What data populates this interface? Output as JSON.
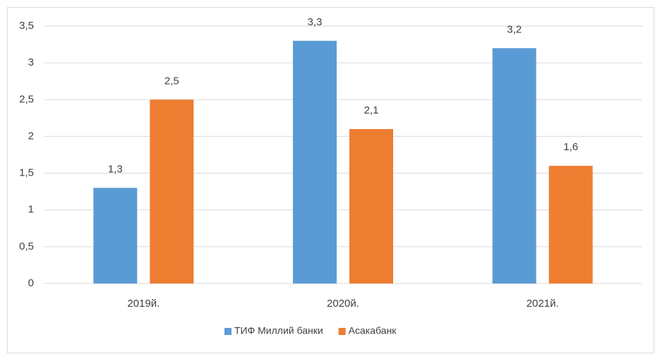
{
  "chart_data": {
    "type": "bar",
    "categories": [
      "2019й.",
      "2020й.",
      "2021й."
    ],
    "series": [
      {
        "name": "ТИФ Миллий банки",
        "color": "#5b9bd5",
        "values": [
          1.3,
          3.3,
          3.2
        ],
        "value_labels": [
          "1,3",
          "3,3",
          "3,2"
        ]
      },
      {
        "name": "Асакабанк",
        "color": "#ed7d31",
        "values": [
          2.5,
          2.1,
          1.6
        ],
        "value_labels": [
          "2,5",
          "2,1",
          "1,6"
        ]
      }
    ],
    "ylim": [
      0,
      3.5
    ],
    "yticks": [
      0,
      {
        "value": 0.5,
        "label": "0,5"
      },
      1,
      {
        "value": 1.5,
        "label": "1,5"
      },
      2,
      {
        "value": 2.5,
        "label": "2,5"
      },
      3,
      {
        "value": 3.5,
        "label": "3,5"
      }
    ],
    "grid": true,
    "legend": "bottom"
  }
}
